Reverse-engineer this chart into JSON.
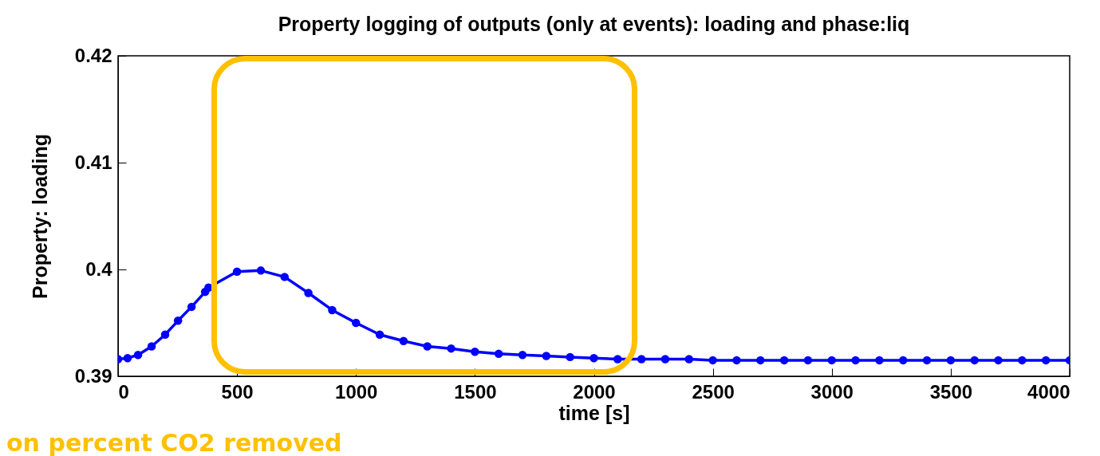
{
  "chart_data": {
    "type": "line",
    "title": "Property logging of outputs (only at events): loading and phase:liq",
    "xlabel": "time [s]",
    "ylabel": "Property: loading",
    "x": [
      0,
      40,
      84,
      141,
      198,
      252,
      309,
      366,
      380,
      500,
      600,
      700,
      800,
      900,
      1000,
      1100,
      1200,
      1300,
      1400,
      1500,
      1600,
      1700,
      1800,
      1900,
      2000,
      2100,
      2200,
      2300,
      2400,
      2500,
      2600,
      2700,
      2800,
      2900,
      3000,
      3100,
      3200,
      3300,
      3400,
      3500,
      3600,
      3700,
      3800,
      3900,
      4000
    ],
    "series": [
      {
        "color": "#0000ff",
        "values": [
          0.3916,
          0.3917,
          0.392,
          0.3928,
          0.3939,
          0.3952,
          0.3965,
          0.3979,
          0.3983,
          0.3998,
          0.3999,
          0.3993,
          0.3978,
          0.3962,
          0.395,
          0.3939,
          0.3933,
          0.3928,
          0.3926,
          0.3923,
          0.3921,
          0.392,
          0.3919,
          0.3918,
          0.3917,
          0.3916,
          0.3916,
          0.3916,
          0.3916,
          0.3915,
          0.3915,
          0.3915,
          0.3915,
          0.3915,
          0.3915,
          0.3915,
          0.3915,
          0.3915,
          0.3915,
          0.3915,
          0.3915,
          0.3915,
          0.3915,
          0.3915,
          0.3915
        ]
      }
    ],
    "xlim": [
      0,
      4000
    ],
    "xticks": [
      0,
      500,
      1000,
      1500,
      2000,
      2500,
      3000,
      3500,
      4000
    ],
    "ylim": [
      0.39,
      0.42
    ],
    "yticks": [
      0.39,
      0.4,
      0.41,
      0.42
    ],
    "marker": "circle",
    "grid": false,
    "legend": false,
    "annotations": [
      "on percent CO2 removed"
    ]
  }
}
